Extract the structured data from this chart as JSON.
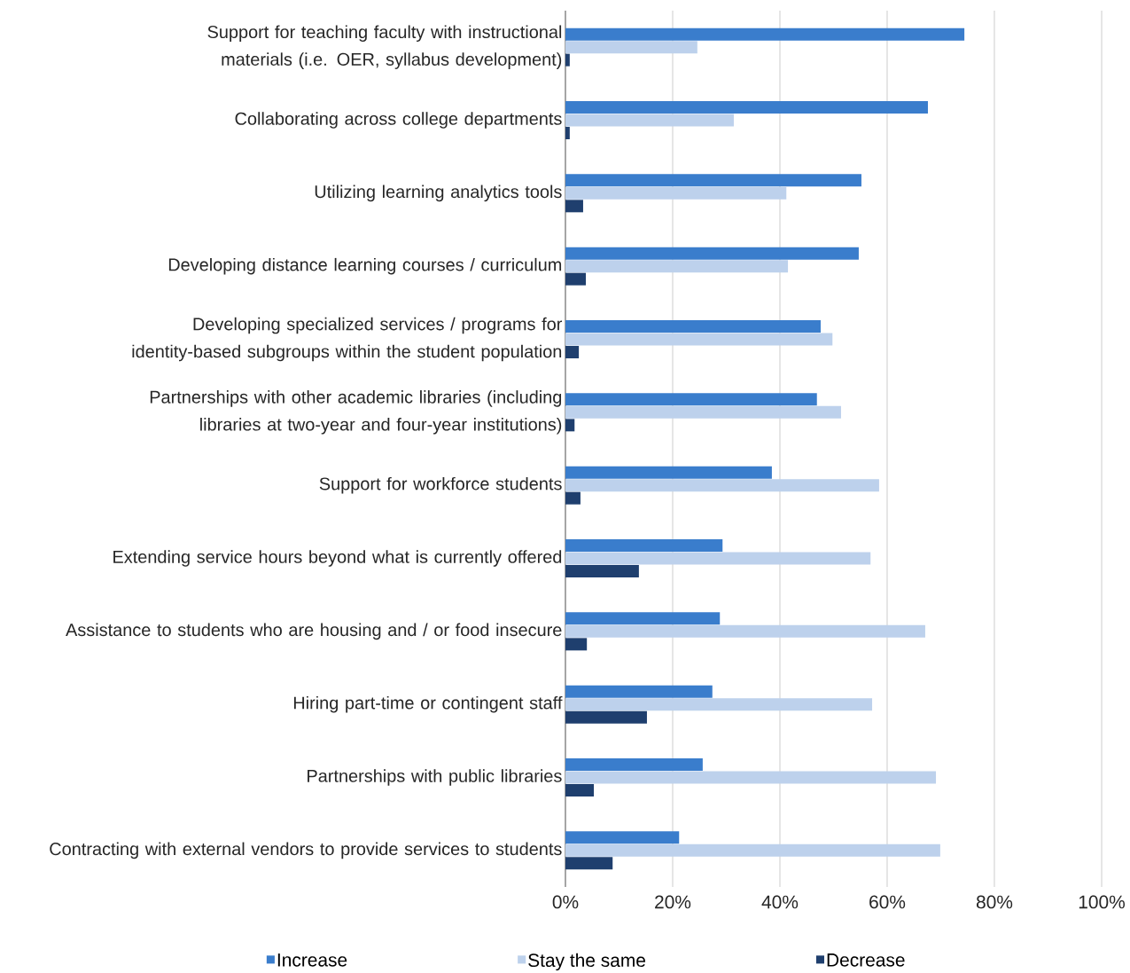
{
  "chart_data": {
    "type": "bar",
    "orientation": "horizontal",
    "categories": [
      "Support for teaching faculty with instructional materials (i.e. OER, syllabus development)",
      "Collaborating across college departments",
      "Utilizing learning analytics tools",
      "Developing distance learning courses / curriculum",
      "Developing specialized services / programs for identity-based subgroups within the student population",
      "Partnerships with other academic libraries (including libraries at two-year and four-year institutions)",
      "Support for workforce students",
      "Extending service hours beyond what is currently offered",
      "Assistance to students who are housing and / or food insecure",
      "Hiring part-time or contingent staff",
      "Partnerships with public libraries",
      "Contracting with external vendors to provide services to students"
    ],
    "series": [
      {
        "name": "Increase",
        "color": "#3a7dcc",
        "values": [
          74.4,
          67.6,
          55.2,
          54.7,
          47.6,
          46.9,
          38.5,
          29.3,
          28.8,
          27.4,
          25.6,
          21.2
        ]
      },
      {
        "name": "Stay the same",
        "color": "#bdd1ec",
        "values": [
          24.6,
          31.4,
          41.2,
          41.5,
          49.8,
          51.4,
          58.5,
          56.9,
          67.1,
          57.2,
          69.1,
          69.9
        ]
      },
      {
        "name": "Decrease",
        "color": "#1f3f6e",
        "values": [
          0.8,
          0.8,
          3.3,
          3.8,
          2.5,
          1.7,
          2.8,
          13.7,
          4.0,
          15.2,
          5.3,
          8.8
        ]
      }
    ],
    "xlim": [
      0,
      100
    ],
    "xticks": [
      {
        "value": 0,
        "label": "0%"
      },
      {
        "value": 20,
        "label": "20%"
      },
      {
        "value": 40,
        "label": "40%"
      },
      {
        "value": 60,
        "label": "60%"
      },
      {
        "value": 80,
        "label": "80%"
      },
      {
        "value": 100,
        "label": "100%"
      }
    ],
    "grid": "x",
    "legend": "bottom"
  }
}
